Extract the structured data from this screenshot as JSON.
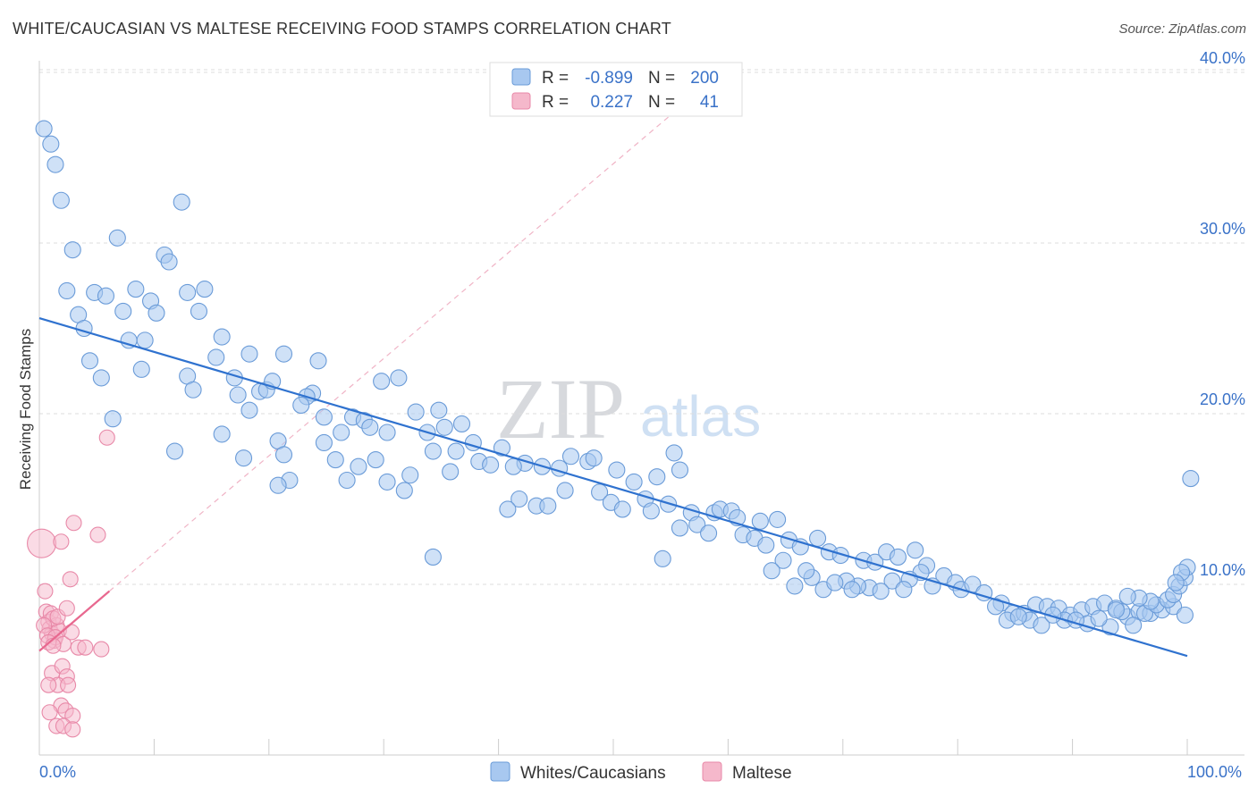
{
  "title": "WHITE/CAUCASIAN VS MALTESE RECEIVING FOOD STAMPS CORRELATION CHART",
  "source": "Source: ZipAtlas.com",
  "watermark": {
    "zip": "ZIP",
    "atlas": "atlas"
  },
  "legend": {
    "r_label": "R =",
    "n_label": "N =",
    "rows": [
      {
        "series": "Whites/Caucasians",
        "r": "-0.899",
        "n": "200",
        "color": "#a8c8f0"
      },
      {
        "series": "Maltese",
        "r": "0.227",
        "n": "41",
        "color": "#f5b8cb"
      }
    ]
  },
  "chart_data": {
    "type": "scatter",
    "title": "WHITE/CAUCASIAN VS MALTESE RECEIVING FOOD STAMPS CORRELATION CHART",
    "xlabel": "",
    "ylabel": "Receiving Food Stamps",
    "xlim": [
      0,
      100
    ],
    "ylim": [
      0,
      42
    ],
    "x_tick_labels": [
      "0.0%",
      "100.0%"
    ],
    "y_ticks": [
      10,
      20,
      30,
      40
    ],
    "y_tick_labels": [
      "10.0%",
      "20.0%",
      "30.0%",
      "40.0%"
    ],
    "colors": {
      "whites": "#a8c8f0",
      "whites_edge": "#6a9bd8",
      "whites_line": "#2f72cf",
      "maltese": "#f5b8cb",
      "maltese_edge": "#e889a8",
      "maltese_line": "#e8688f"
    },
    "series": [
      {
        "name": "Whites/Caucasians",
        "trend": {
          "x": [
            0,
            100
          ],
          "y": [
            25.6,
            5.8
          ]
        },
        "points": [
          [
            0.4,
            36.7
          ],
          [
            1.0,
            35.8
          ],
          [
            1.4,
            34.6
          ],
          [
            1.9,
            32.5
          ],
          [
            12.4,
            32.4
          ],
          [
            2.9,
            29.6
          ],
          [
            6.8,
            30.3
          ],
          [
            10.9,
            29.3
          ],
          [
            11.3,
            28.9
          ],
          [
            2.4,
            27.2
          ],
          [
            4.8,
            27.1
          ],
          [
            5.8,
            26.9
          ],
          [
            8.4,
            27.3
          ],
          [
            9.7,
            26.6
          ],
          [
            12.9,
            27.1
          ],
          [
            14.4,
            27.3
          ],
          [
            3.4,
            25.8
          ],
          [
            7.3,
            26.0
          ],
          [
            10.2,
            25.9
          ],
          [
            13.9,
            26.0
          ],
          [
            3.9,
            25.0
          ],
          [
            7.8,
            24.3
          ],
          [
            9.2,
            24.3
          ],
          [
            15.9,
            24.5
          ],
          [
            4.4,
            23.1
          ],
          [
            8.9,
            22.6
          ],
          [
            12.9,
            22.2
          ],
          [
            15.4,
            23.3
          ],
          [
            18.3,
            23.5
          ],
          [
            21.3,
            23.5
          ],
          [
            24.3,
            23.1
          ],
          [
            5.4,
            22.1
          ],
          [
            13.4,
            21.4
          ],
          [
            17.0,
            22.1
          ],
          [
            19.2,
            21.3
          ],
          [
            19.8,
            21.4
          ],
          [
            20.3,
            21.9
          ],
          [
            23.8,
            21.2
          ],
          [
            31.3,
            22.1
          ],
          [
            29.8,
            21.9
          ],
          [
            23.3,
            21.0
          ],
          [
            17.3,
            21.1
          ],
          [
            6.4,
            19.7
          ],
          [
            15.9,
            18.8
          ],
          [
            18.3,
            20.2
          ],
          [
            24.8,
            19.8
          ],
          [
            27.3,
            19.8
          ],
          [
            28.3,
            19.6
          ],
          [
            32.8,
            20.1
          ],
          [
            34.8,
            20.2
          ],
          [
            36.8,
            19.4
          ],
          [
            22.8,
            20.5
          ],
          [
            26.3,
            18.9
          ],
          [
            28.8,
            19.2
          ],
          [
            30.3,
            18.9
          ],
          [
            33.8,
            18.9
          ],
          [
            35.3,
            19.2
          ],
          [
            37.8,
            18.3
          ],
          [
            40.3,
            18.0
          ],
          [
            24.8,
            18.3
          ],
          [
            20.8,
            18.4
          ],
          [
            11.8,
            17.8
          ],
          [
            17.8,
            17.4
          ],
          [
            21.3,
            17.6
          ],
          [
            25.8,
            17.3
          ],
          [
            29.3,
            17.3
          ],
          [
            34.3,
            17.8
          ],
          [
            36.3,
            17.8
          ],
          [
            38.3,
            17.2
          ],
          [
            35.8,
            16.6
          ],
          [
            26.8,
            16.1
          ],
          [
            30.3,
            16.0
          ],
          [
            32.3,
            16.4
          ],
          [
            21.8,
            16.1
          ],
          [
            20.8,
            15.8
          ],
          [
            42.3,
            17.1
          ],
          [
            43.8,
            16.9
          ],
          [
            46.3,
            17.5
          ],
          [
            45.3,
            16.8
          ],
          [
            47.8,
            17.2
          ],
          [
            48.3,
            17.4
          ],
          [
            50.3,
            16.7
          ],
          [
            51.8,
            16.0
          ],
          [
            52.8,
            15.0
          ],
          [
            53.8,
            16.3
          ],
          [
            55.8,
            16.7
          ],
          [
            39.3,
            17.0
          ],
          [
            41.3,
            16.9
          ],
          [
            41.8,
            15.0
          ],
          [
            40.8,
            14.4
          ],
          [
            43.3,
            14.6
          ],
          [
            44.3,
            14.6
          ],
          [
            45.8,
            15.5
          ],
          [
            48.8,
            15.4
          ],
          [
            49.8,
            14.8
          ],
          [
            50.8,
            14.4
          ],
          [
            53.3,
            14.3
          ],
          [
            54.8,
            14.7
          ],
          [
            56.8,
            14.2
          ],
          [
            58.8,
            14.2
          ],
          [
            59.3,
            14.4
          ],
          [
            60.3,
            14.3
          ],
          [
            57.3,
            13.5
          ],
          [
            60.8,
            13.9
          ],
          [
            62.8,
            13.7
          ],
          [
            64.3,
            13.8
          ],
          [
            55.8,
            13.3
          ],
          [
            58.3,
            13.0
          ],
          [
            61.3,
            12.9
          ],
          [
            62.3,
            12.7
          ],
          [
            63.3,
            12.3
          ],
          [
            65.3,
            12.6
          ],
          [
            66.3,
            12.2
          ],
          [
            67.8,
            12.7
          ],
          [
            68.8,
            11.9
          ],
          [
            69.8,
            11.7
          ],
          [
            71.8,
            11.4
          ],
          [
            72.8,
            11.3
          ],
          [
            73.8,
            11.9
          ],
          [
            74.8,
            11.6
          ],
          [
            76.3,
            12.0
          ],
          [
            77.3,
            11.1
          ],
          [
            78.8,
            10.5
          ],
          [
            79.8,
            10.1
          ],
          [
            76.8,
            10.7
          ],
          [
            75.8,
            10.3
          ],
          [
            74.3,
            10.2
          ],
          [
            72.3,
            9.8
          ],
          [
            71.3,
            9.9
          ],
          [
            70.3,
            10.2
          ],
          [
            67.3,
            10.4
          ],
          [
            66.8,
            10.8
          ],
          [
            64.8,
            11.4
          ],
          [
            63.8,
            10.8
          ],
          [
            65.8,
            9.9
          ],
          [
            68.3,
            9.7
          ],
          [
            69.3,
            10.1
          ],
          [
            70.8,
            9.7
          ],
          [
            73.3,
            9.6
          ],
          [
            75.3,
            9.7
          ],
          [
            77.8,
            9.9
          ],
          [
            80.3,
            9.7
          ],
          [
            81.3,
            10.0
          ],
          [
            82.3,
            9.5
          ],
          [
            83.8,
            8.9
          ],
          [
            84.8,
            8.3
          ],
          [
            85.8,
            8.3
          ],
          [
            86.8,
            8.8
          ],
          [
            87.8,
            8.7
          ],
          [
            88.8,
            8.6
          ],
          [
            89.8,
            8.2
          ],
          [
            90.8,
            8.5
          ],
          [
            91.8,
            8.7
          ],
          [
            92.8,
            8.9
          ],
          [
            93.8,
            8.6
          ],
          [
            94.8,
            8.1
          ],
          [
            95.8,
            8.4
          ],
          [
            96.8,
            8.3
          ],
          [
            97.8,
            8.5
          ],
          [
            98.8,
            8.7
          ],
          [
            99.8,
            8.2
          ],
          [
            84.3,
            7.9
          ],
          [
            86.3,
            7.9
          ],
          [
            87.3,
            7.6
          ],
          [
            89.3,
            7.9
          ],
          [
            91.3,
            7.7
          ],
          [
            93.3,
            7.5
          ],
          [
            95.3,
            7.6
          ],
          [
            83.3,
            8.7
          ],
          [
            85.3,
            8.1
          ],
          [
            88.3,
            8.2
          ],
          [
            90.3,
            7.9
          ],
          [
            92.3,
            8.0
          ],
          [
            94.3,
            8.4
          ],
          [
            96.3,
            8.3
          ],
          [
            97.3,
            8.8
          ],
          [
            98.3,
            9.1
          ],
          [
            98.8,
            9.4
          ],
          [
            99.3,
            9.9
          ],
          [
            99.8,
            10.4
          ],
          [
            100.0,
            11.0
          ],
          [
            99.5,
            10.7
          ],
          [
            99.0,
            10.1
          ],
          [
            100.3,
            16.2
          ],
          [
            96.8,
            9.0
          ],
          [
            95.8,
            9.2
          ],
          [
            94.8,
            9.3
          ],
          [
            93.8,
            8.5
          ],
          [
            34.3,
            11.6
          ],
          [
            54.3,
            11.5
          ],
          [
            55.3,
            17.7
          ],
          [
            27.8,
            16.9
          ],
          [
            31.8,
            15.5
          ]
        ]
      },
      {
        "name": "Maltese",
        "trend": {
          "x": [
            0,
            6.1
          ],
          "y": [
            6.1,
            9.6
          ]
        },
        "trend_extension": {
          "x": [
            6.1,
            55
          ],
          "y": [
            9.6,
            37.5
          ]
        },
        "points": [
          [
            0.2,
            12.4
          ],
          [
            0.5,
            9.6
          ],
          [
            0.6,
            8.4
          ],
          [
            0.8,
            7.8
          ],
          [
            0.9,
            7.4
          ],
          [
            1.0,
            8.3
          ],
          [
            1.1,
            7.1
          ],
          [
            1.3,
            6.7
          ],
          [
            1.5,
            7.6
          ],
          [
            1.7,
            7.3
          ],
          [
            1.2,
            8.0
          ],
          [
            1.6,
            8.1
          ],
          [
            0.4,
            7.6
          ],
          [
            0.7,
            7.0
          ],
          [
            1.4,
            6.9
          ],
          [
            2.1,
            6.5
          ],
          [
            2.4,
            8.6
          ],
          [
            2.8,
            7.2
          ],
          [
            3.4,
            6.3
          ],
          [
            4.0,
            6.3
          ],
          [
            5.4,
            6.2
          ],
          [
            1.9,
            12.5
          ],
          [
            2.7,
            10.3
          ],
          [
            3.0,
            13.6
          ],
          [
            5.1,
            12.9
          ],
          [
            5.9,
            18.6
          ],
          [
            0.8,
            6.6
          ],
          [
            1.1,
            4.8
          ],
          [
            2.0,
            5.2
          ],
          [
            2.4,
            4.6
          ],
          [
            1.6,
            4.1
          ],
          [
            0.8,
            4.1
          ],
          [
            2.5,
            4.1
          ],
          [
            1.9,
            2.9
          ],
          [
            2.3,
            2.6
          ],
          [
            0.9,
            2.5
          ],
          [
            2.9,
            2.3
          ],
          [
            1.5,
            1.7
          ],
          [
            2.1,
            1.7
          ],
          [
            2.9,
            1.5
          ],
          [
            1.2,
            6.4
          ]
        ]
      }
    ]
  },
  "bottom_legend": [
    "Whites/Caucasians",
    "Maltese"
  ]
}
